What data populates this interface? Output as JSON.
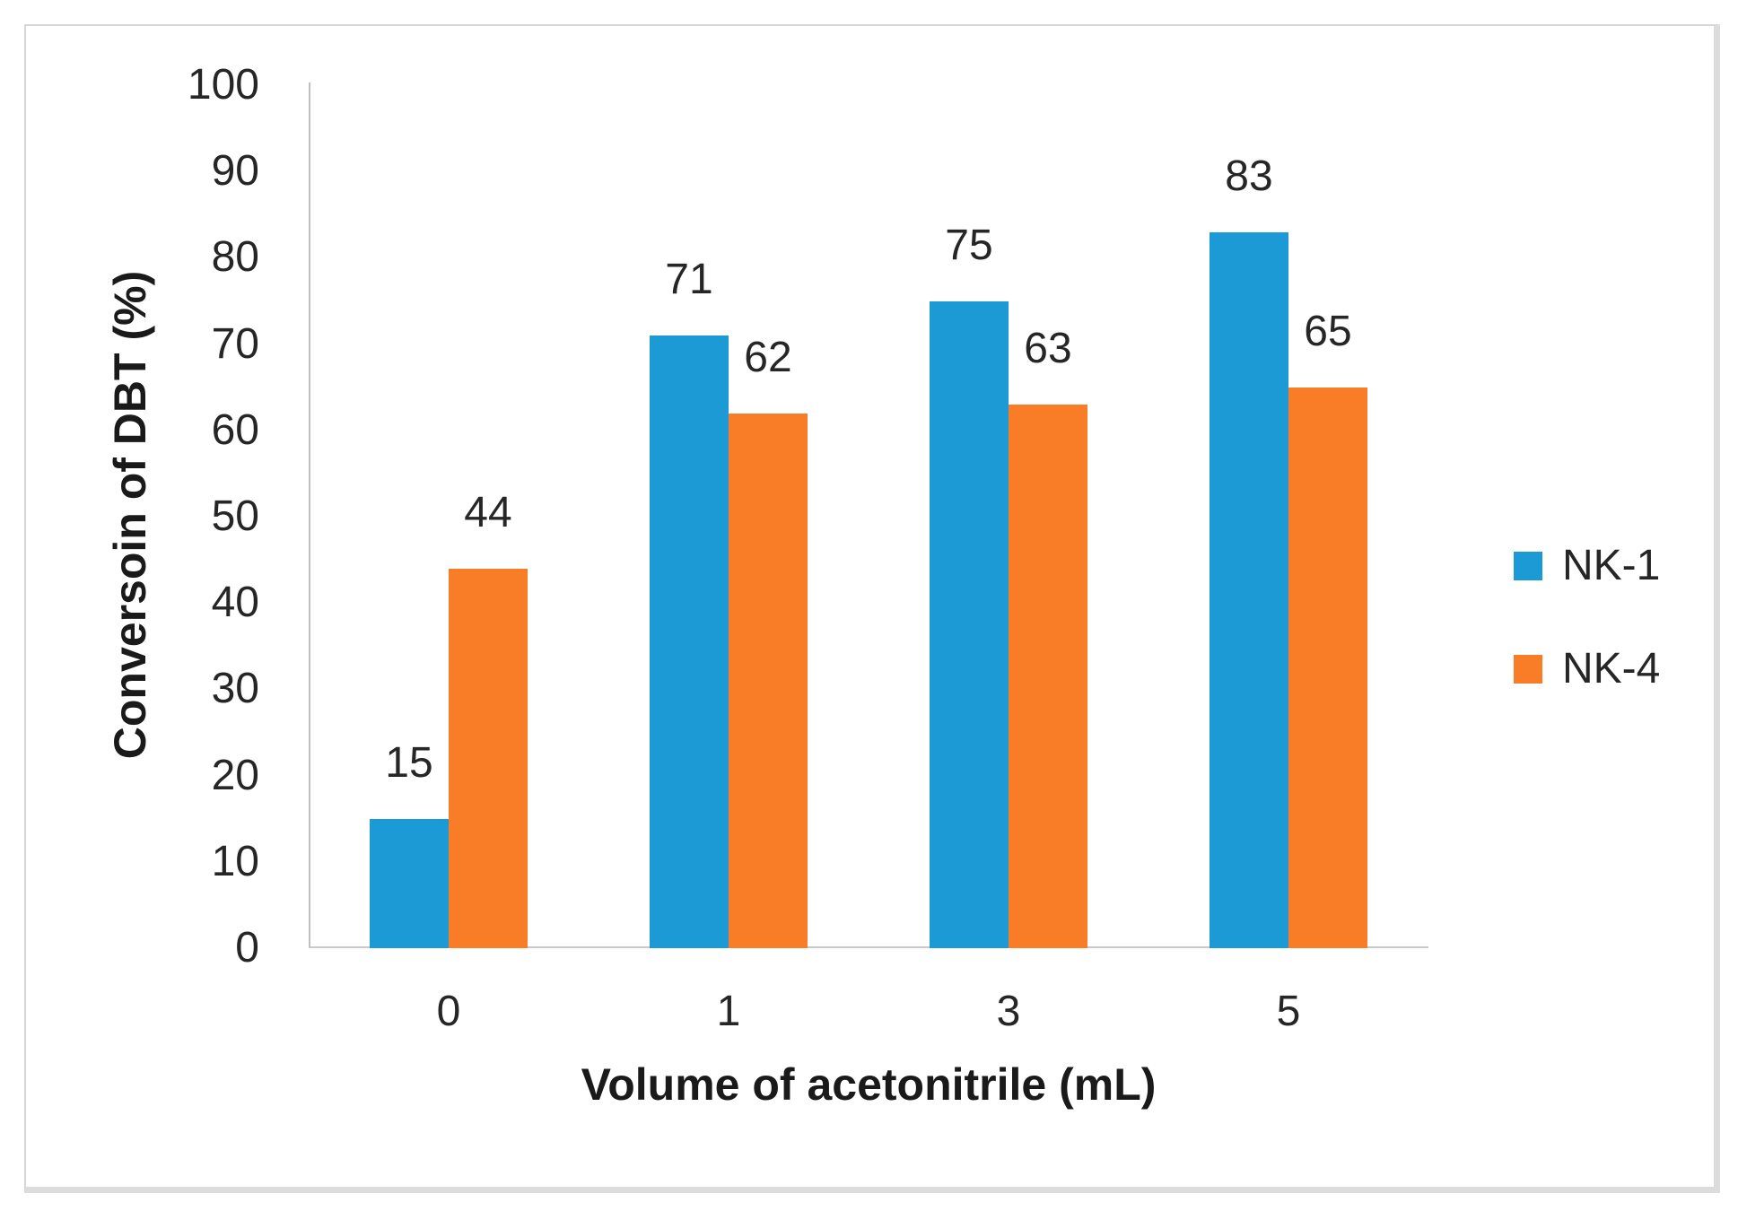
{
  "chart_data": {
    "type": "bar",
    "title": "",
    "categories": [
      "0",
      "1",
      "3",
      "5"
    ],
    "series": [
      {
        "name": "NK-1",
        "color": "#1b9ad6",
        "values": [
          15,
          71,
          75,
          83
        ]
      },
      {
        "name": "NK-4",
        "color": "#f97d26",
        "values": [
          44,
          62,
          63,
          65
        ]
      }
    ],
    "data_labels": [
      [
        "15",
        "71",
        "75",
        "83"
      ],
      [
        "44",
        "62",
        "63",
        "65"
      ]
    ],
    "xlabel": "Volume of acetonitrile (mL)",
    "ylabel": "Conversoin of DBT (%)",
    "ylim": [
      0,
      100
    ],
    "ytick_step": 10,
    "yticks": [
      "0",
      "10",
      "20",
      "30",
      "40",
      "50",
      "60",
      "70",
      "80",
      "90",
      "100"
    ],
    "grid": false,
    "legend_position": "right",
    "colors": {
      "axis_line": "#bfbfbf",
      "text": "#262626",
      "frame_border": "#d6d6d6"
    }
  }
}
